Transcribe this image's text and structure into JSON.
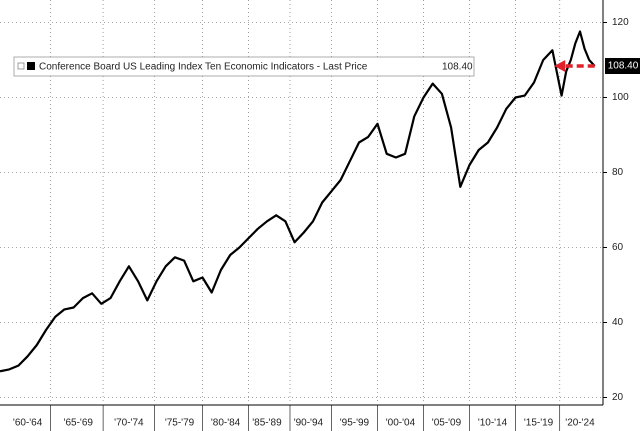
{
  "chart_data": {
    "type": "line",
    "series": [
      {
        "name": "Conference Board US Leading Index Ten Economic Indicators - Last Price",
        "color": "#000000",
        "x": [
          1959,
          1960,
          1961,
          1962,
          1963,
          1964,
          1965,
          1966,
          1967,
          1968,
          1969,
          1970,
          1971,
          1972,
          1973,
          1974,
          1975,
          1976,
          1977,
          1978,
          1979,
          1980,
          1981,
          1982,
          1983,
          1984,
          1985,
          1986,
          1987,
          1988,
          1989,
          1990,
          1991,
          1992,
          1993,
          1994,
          1995,
          1996,
          1997,
          1998,
          1999,
          2000,
          2001,
          2002,
          2003,
          2004,
          2005,
          2006,
          2007,
          2008,
          2009,
          2010,
          2011,
          2012,
          2013,
          2014,
          2015,
          2016,
          2017,
          2018,
          2019,
          2020,
          2020.5,
          2021,
          2021.5,
          2022,
          2022.5,
          2023,
          2023.6
        ],
        "values": [
          27,
          27.5,
          28.5,
          31,
          34,
          38,
          41.5,
          43.5,
          44,
          46.5,
          47.8,
          45,
          46.5,
          51,
          55,
          51,
          45.9,
          51,
          55,
          57.4,
          56.5,
          51,
          52,
          48,
          54,
          58,
          60,
          62.5,
          65,
          67,
          68.6,
          67,
          61.4,
          64,
          67,
          72,
          75,
          78,
          83,
          88,
          89.5,
          93,
          85,
          84,
          85,
          95,
          100,
          103.7,
          101,
          92,
          76.2,
          82,
          86,
          88,
          92,
          97,
          100,
          100.5,
          104,
          110,
          112.6,
          100.5,
          107,
          110,
          114.5,
          117.6,
          113,
          110,
          108.4
        ],
        "last_value_label": "108.40"
      }
    ],
    "xlim": [
      1959,
      2024.5
    ],
    "xticks": [
      {
        "value": 1962,
        "label": "'60-'64"
      },
      {
        "value": 1967.5,
        "label": "'65-'69"
      },
      {
        "value": 1973,
        "label": "'70-'74"
      },
      {
        "value": 1978.5,
        "label": "'75-'79"
      },
      {
        "value": 1983.5,
        "label": "'80-'84"
      },
      {
        "value": 1988,
        "label": "'85-'89"
      },
      {
        "value": 1992.5,
        "label": "'90-'94"
      },
      {
        "value": 1997.5,
        "label": "'95-'99"
      },
      {
        "value": 2002.5,
        "label": "'00-'04"
      },
      {
        "value": 2007.5,
        "label": "'05-'09"
      },
      {
        "value": 2012.5,
        "label": "'10-'14"
      },
      {
        "value": 2017.5,
        "label": "'15-'19"
      },
      {
        "value": 2022,
        "label": "'20-'24"
      }
    ],
    "xgrid": [
      1964.5,
      1970.2,
      1975.8,
      1981,
      1986,
      1990.5,
      1995,
      2000,
      2005,
      2010,
      2015,
      2019.8
    ],
    "ylim": [
      18,
      126
    ],
    "yticks": [
      20,
      40,
      60,
      80,
      100,
      120
    ],
    "grid": true
  }
}
